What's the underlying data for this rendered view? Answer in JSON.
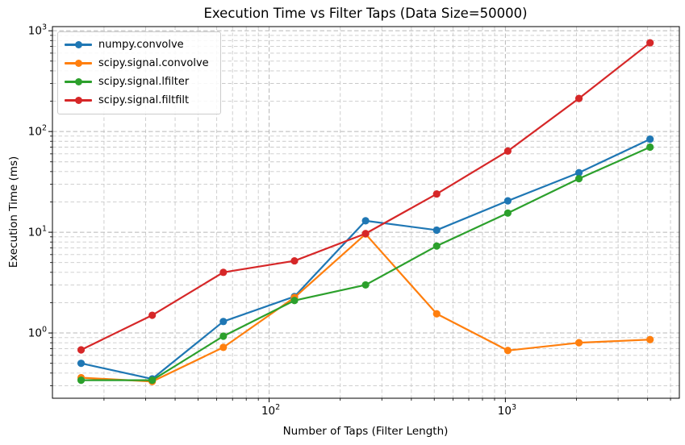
{
  "chart_data": {
    "type": "line",
    "title": "Execution Time vs Filter Taps (Data Size=50000)",
    "xlabel": "Number of Taps (Filter Length)",
    "ylabel": "Execution Time (ms)",
    "x_scale": "log",
    "y_scale": "log",
    "xlim": [
      12.1,
      5450
    ],
    "ylim": [
      0.225,
      1100
    ],
    "grid": "both, dashed gray",
    "legend_position": "upper left",
    "x": [
      16,
      32,
      64,
      128,
      256,
      512,
      1024,
      2048,
      4096
    ],
    "series": [
      {
        "name": "numpy.convolve",
        "color": "#1f77b4",
        "values": [
          0.5,
          0.35,
          1.3,
          2.3,
          13.0,
          10.5,
          20.5,
          39,
          84
        ]
      },
      {
        "name": "scipy.signal.convolve",
        "color": "#ff7f0e",
        "values": [
          0.36,
          0.33,
          0.72,
          2.25,
          9.6,
          1.55,
          0.67,
          0.8,
          0.86
        ]
      },
      {
        "name": "scipy.signal.lfilter",
        "color": "#2ca02c",
        "values": [
          0.34,
          0.34,
          0.93,
          2.1,
          3.0,
          7.3,
          15.5,
          34,
          70
        ]
      },
      {
        "name": "scipy.signal.filtfilt",
        "color": "#d62728",
        "values": [
          0.68,
          1.5,
          4.0,
          5.2,
          9.7,
          24,
          64,
          213,
          760
        ]
      }
    ],
    "x_tick_labels": [
      {
        "base": "10",
        "exp": "2",
        "value": 100
      },
      {
        "base": "10",
        "exp": "3",
        "value": 1000
      }
    ],
    "y_tick_labels": [
      {
        "base": "10",
        "exp": "0",
        "value": 1
      },
      {
        "base": "10",
        "exp": "1",
        "value": 10
      },
      {
        "base": "10",
        "exp": "2",
        "value": 100
      },
      {
        "base": "10",
        "exp": "3",
        "value": 1000
      }
    ],
    "colors": {
      "grid_major": "#b8b8b8",
      "grid_minor": "#c9c9c9",
      "spine": "#000000"
    }
  }
}
